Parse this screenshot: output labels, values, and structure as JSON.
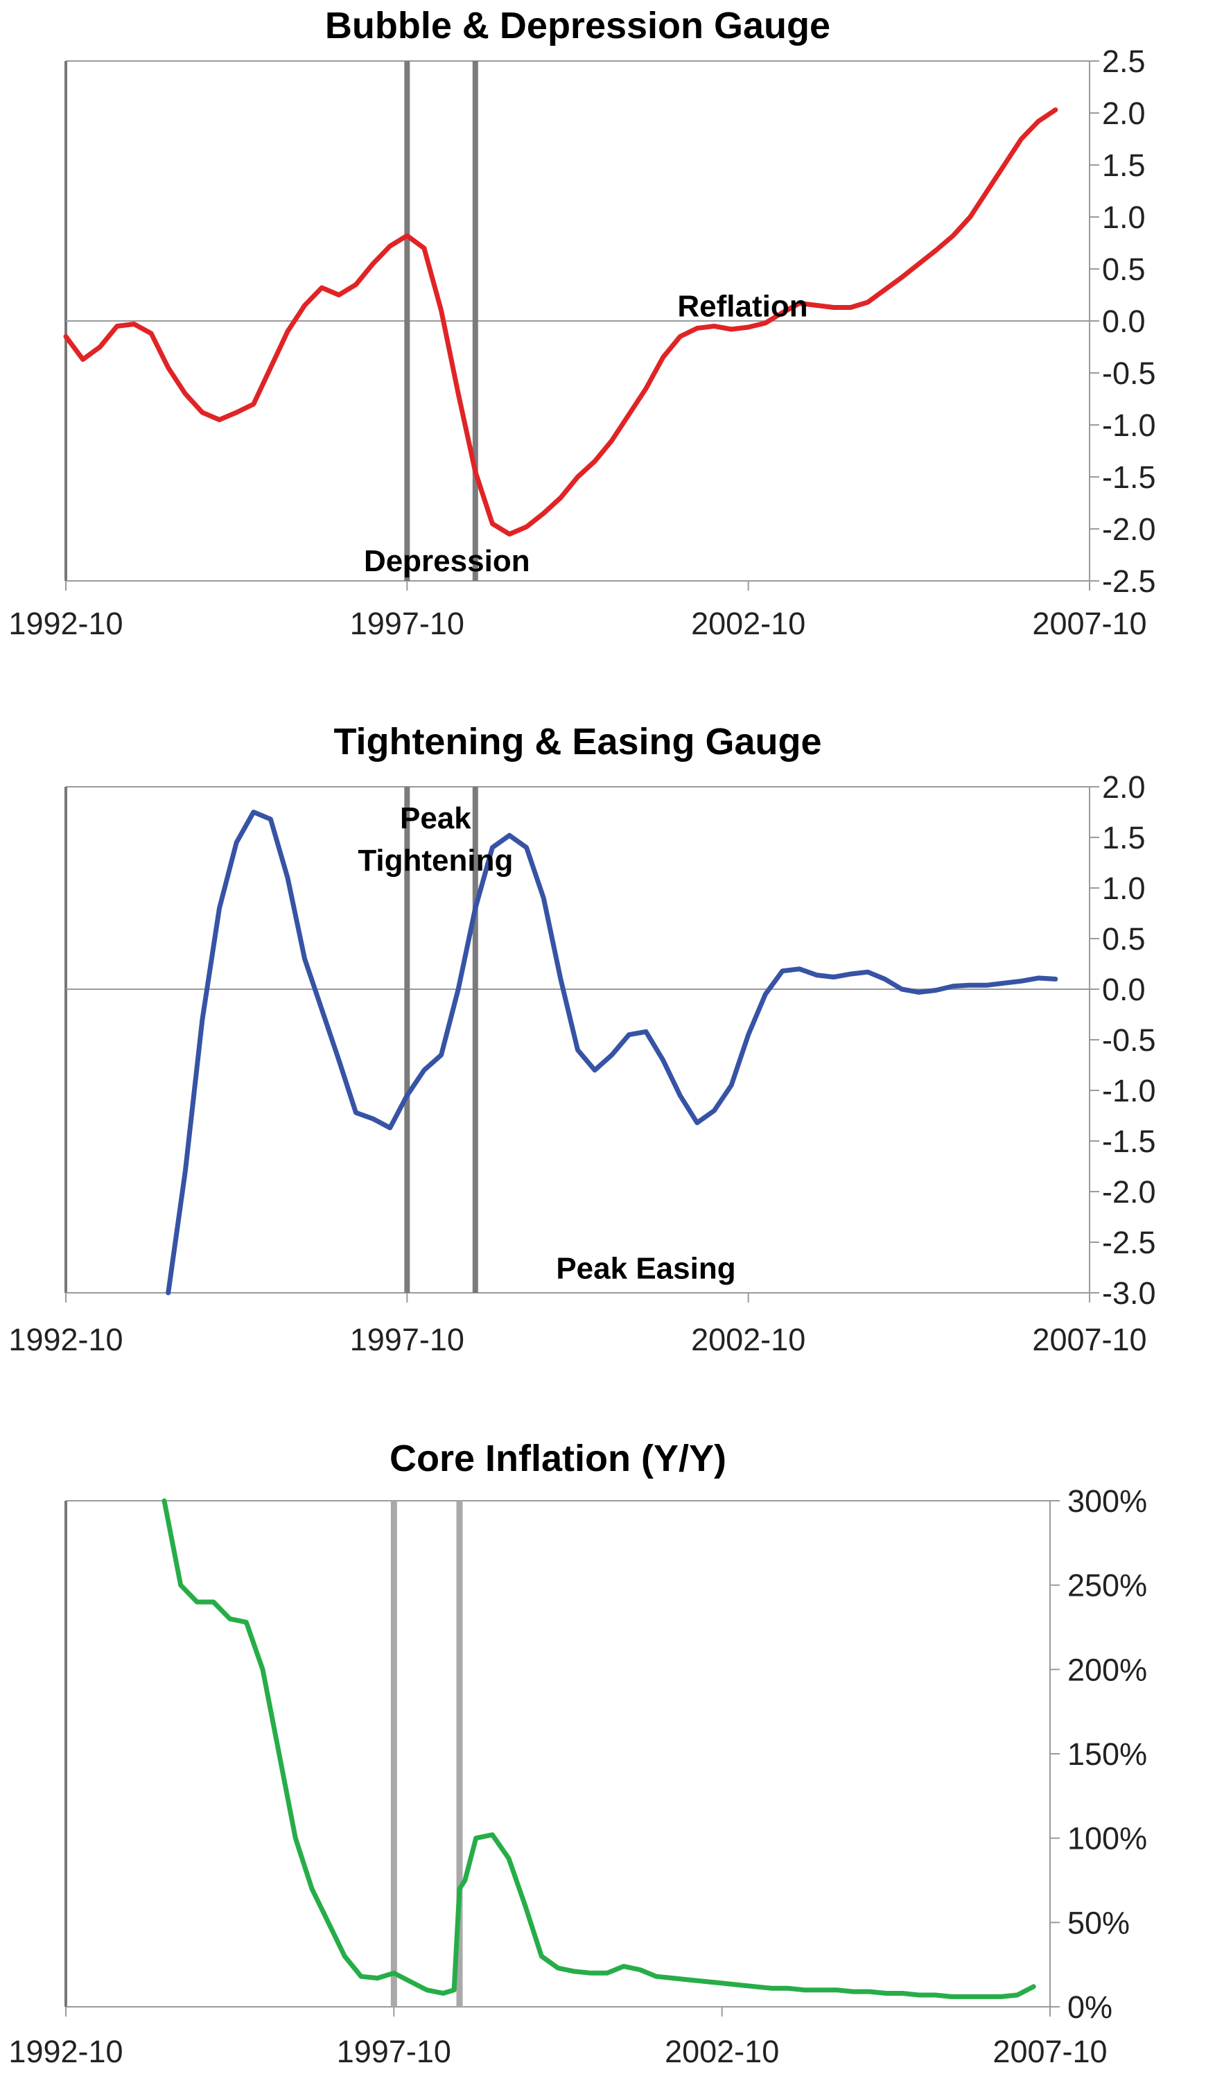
{
  "colors": {
    "bubble_line": "#e02426",
    "easing_line": "#3653a5",
    "inflation_line": "#27ad48",
    "marker_dark": "#7b7b7b",
    "marker_light": "#a9a9a9",
    "axis": "#9a9a9a"
  },
  "chart_data": [
    {
      "type": "line",
      "title": "Bubble & Depression Gauge",
      "xlabel": "",
      "ylabel": "",
      "x_ticks": [
        "1992-10",
        "1997-10",
        "2002-10",
        "2007-10"
      ],
      "y_ticks": [
        "2.5",
        "2.0",
        "1.5",
        "1.0",
        "0.5",
        "0.0",
        "-0.5",
        "-1.0",
        "-1.5",
        "-2.0",
        "-2.5"
      ],
      "ylim": [
        -2.5,
        2.5
      ],
      "y_axis_side": "right",
      "grid": false,
      "markers": [
        "1997-10",
        "1998-10"
      ],
      "annotations": [
        {
          "text": "Reflation",
          "x": "2002-09",
          "y": 0.15
        },
        {
          "text": "Depression",
          "x": "1998-05",
          "y": -2.3
        }
      ],
      "series": [
        {
          "values": [
            {
              "x": "1992-10",
              "y": -0.15
            },
            {
              "x": "1993-01",
              "y": -0.37
            },
            {
              "x": "1993-04",
              "y": -0.25
            },
            {
              "x": "1993-07",
              "y": -0.05
            },
            {
              "x": "1993-10",
              "y": -0.03
            },
            {
              "x": "1994-01",
              "y": -0.12
            },
            {
              "x": "1994-04",
              "y": -0.45
            },
            {
              "x": "1994-07",
              "y": -0.7
            },
            {
              "x": "1994-10",
              "y": -0.88
            },
            {
              "x": "1995-01",
              "y": -0.95
            },
            {
              "x": "1995-04",
              "y": -0.88
            },
            {
              "x": "1995-07",
              "y": -0.8
            },
            {
              "x": "1995-10",
              "y": -0.45
            },
            {
              "x": "1996-01",
              "y": -0.1
            },
            {
              "x": "1996-04",
              "y": 0.15
            },
            {
              "x": "1996-07",
              "y": 0.32
            },
            {
              "x": "1996-10",
              "y": 0.25
            },
            {
              "x": "1997-01",
              "y": 0.35
            },
            {
              "x": "1997-04",
              "y": 0.55
            },
            {
              "x": "1997-07",
              "y": 0.72
            },
            {
              "x": "1997-10",
              "y": 0.82
            },
            {
              "x": "1998-01",
              "y": 0.7
            },
            {
              "x": "1998-04",
              "y": 0.1
            },
            {
              "x": "1998-07",
              "y": -0.7
            },
            {
              "x": "1998-10",
              "y": -1.45
            },
            {
              "x": "1999-01",
              "y": -1.95
            },
            {
              "x": "1999-04",
              "y": -2.05
            },
            {
              "x": "1999-07",
              "y": -1.98
            },
            {
              "x": "1999-10",
              "y": -1.85
            },
            {
              "x": "2000-01",
              "y": -1.7
            },
            {
              "x": "2000-04",
              "y": -1.5
            },
            {
              "x": "2000-07",
              "y": -1.35
            },
            {
              "x": "2000-10",
              "y": -1.15
            },
            {
              "x": "2001-01",
              "y": -0.9
            },
            {
              "x": "2001-04",
              "y": -0.65
            },
            {
              "x": "2001-07",
              "y": -0.35
            },
            {
              "x": "2001-10",
              "y": -0.15
            },
            {
              "x": "2002-01",
              "y": -0.07
            },
            {
              "x": "2002-04",
              "y": -0.05
            },
            {
              "x": "2002-07",
              "y": -0.08
            },
            {
              "x": "2002-10",
              "y": -0.06
            },
            {
              "x": "2003-01",
              "y": -0.02
            },
            {
              "x": "2003-04",
              "y": 0.08
            },
            {
              "x": "2003-07",
              "y": 0.17
            },
            {
              "x": "2003-10",
              "y": 0.15
            },
            {
              "x": "2004-01",
              "y": 0.13
            },
            {
              "x": "2004-04",
              "y": 0.13
            },
            {
              "x": "2004-07",
              "y": 0.18
            },
            {
              "x": "2004-10",
              "y": 0.3
            },
            {
              "x": "2005-01",
              "y": 0.42
            },
            {
              "x": "2005-04",
              "y": 0.55
            },
            {
              "x": "2005-07",
              "y": 0.68
            },
            {
              "x": "2005-10",
              "y": 0.82
            },
            {
              "x": "2006-01",
              "y": 1.0
            },
            {
              "x": "2006-04",
              "y": 1.25
            },
            {
              "x": "2006-07",
              "y": 1.5
            },
            {
              "x": "2006-10",
              "y": 1.75
            },
            {
              "x": "2007-01",
              "y": 1.92
            },
            {
              "x": "2007-04",
              "y": 2.03
            }
          ]
        }
      ]
    },
    {
      "type": "line",
      "title": "Tightening & Easing Gauge",
      "xlabel": "",
      "ylabel": "",
      "x_ticks": [
        "1992-10",
        "1997-10",
        "2002-10",
        "2007-10"
      ],
      "y_ticks": [
        "2.0",
        "1.5",
        "1.0",
        "0.5",
        "0.0",
        "-0.5",
        "-1.0",
        "-1.5",
        "-2.0",
        "-2.5",
        "-3.0"
      ],
      "ylim": [
        -3.0,
        2.0
      ],
      "y_axis_side": "right",
      "grid": false,
      "markers": [
        "1997-10",
        "1998-10"
      ],
      "annotations": [
        {
          "text": "Peak",
          "x": "1998-03",
          "y": 1.7
        },
        {
          "text": "Tightening",
          "x": "1998-03",
          "y": 1.28
        },
        {
          "text": "Peak Easing",
          "x": "2001-04",
          "y": -2.75
        }
      ],
      "series": [
        {
          "values": [
            {
              "x": "1994-04",
              "y": -3.0
            },
            {
              "x": "1994-07",
              "y": -1.8
            },
            {
              "x": "1994-10",
              "y": -0.3
            },
            {
              "x": "1995-01",
              "y": 0.8
            },
            {
              "x": "1995-04",
              "y": 1.45
            },
            {
              "x": "1995-07",
              "y": 1.75
            },
            {
              "x": "1995-10",
              "y": 1.68
            },
            {
              "x": "1996-01",
              "y": 1.1
            },
            {
              "x": "1996-04",
              "y": 0.3
            },
            {
              "x": "1996-07",
              "y": -0.2
            },
            {
              "x": "1996-10",
              "y": -0.7
            },
            {
              "x": "1997-01",
              "y": -1.22
            },
            {
              "x": "1997-04",
              "y": -1.28
            },
            {
              "x": "1997-07",
              "y": -1.37
            },
            {
              "x": "1997-10",
              "y": -1.05
            },
            {
              "x": "1998-01",
              "y": -0.8
            },
            {
              "x": "1998-04",
              "y": -0.65
            },
            {
              "x": "1998-07",
              "y": 0.0
            },
            {
              "x": "1998-10",
              "y": 0.8
            },
            {
              "x": "1999-01",
              "y": 1.4
            },
            {
              "x": "1999-04",
              "y": 1.52
            },
            {
              "x": "1999-07",
              "y": 1.4
            },
            {
              "x": "1999-10",
              "y": 0.9
            },
            {
              "x": "2000-01",
              "y": 0.1
            },
            {
              "x": "2000-04",
              "y": -0.6
            },
            {
              "x": "2000-07",
              "y": -0.8
            },
            {
              "x": "2000-10",
              "y": -0.65
            },
            {
              "x": "2001-01",
              "y": -0.45
            },
            {
              "x": "2001-04",
              "y": -0.42
            },
            {
              "x": "2001-07",
              "y": -0.7
            },
            {
              "x": "2001-10",
              "y": -1.05
            },
            {
              "x": "2002-01",
              "y": -1.32
            },
            {
              "x": "2002-04",
              "y": -1.2
            },
            {
              "x": "2002-07",
              "y": -0.95
            },
            {
              "x": "2002-10",
              "y": -0.45
            },
            {
              "x": "2003-01",
              "y": -0.05
            },
            {
              "x": "2003-04",
              "y": 0.18
            },
            {
              "x": "2003-07",
              "y": 0.2
            },
            {
              "x": "2003-10",
              "y": 0.14
            },
            {
              "x": "2004-01",
              "y": 0.12
            },
            {
              "x": "2004-04",
              "y": 0.15
            },
            {
              "x": "2004-07",
              "y": 0.17
            },
            {
              "x": "2004-10",
              "y": 0.1
            },
            {
              "x": "2005-01",
              "y": 0.0
            },
            {
              "x": "2005-04",
              "y": -0.03
            },
            {
              "x": "2005-07",
              "y": -0.01
            },
            {
              "x": "2005-10",
              "y": 0.03
            },
            {
              "x": "2006-01",
              "y": 0.04
            },
            {
              "x": "2006-04",
              "y": 0.04
            },
            {
              "x": "2006-07",
              "y": 0.06
            },
            {
              "x": "2006-10",
              "y": 0.08
            },
            {
              "x": "2007-01",
              "y": 0.11
            },
            {
              "x": "2007-04",
              "y": 0.1
            }
          ]
        }
      ]
    },
    {
      "type": "line",
      "title": "Core Inflation (Y/Y)",
      "xlabel": "",
      "ylabel": "",
      "x_ticks": [
        "1992-10",
        "1997-10",
        "2002-10",
        "2007-10"
      ],
      "y_ticks": [
        "300%",
        "250%",
        "200%",
        "150%",
        "100%",
        "50%",
        "0%"
      ],
      "ylim": [
        0,
        300
      ],
      "y_unit": "%",
      "y_axis_side": "right",
      "grid": false,
      "markers": [
        "1997-10",
        "1998-10"
      ],
      "series": [
        {
          "values": [
            {
              "x": "1994-04",
              "y": 300
            },
            {
              "x": "1994-07",
              "y": 250
            },
            {
              "x": "1994-10",
              "y": 240
            },
            {
              "x": "1995-01",
              "y": 240
            },
            {
              "x": "1995-04",
              "y": 230
            },
            {
              "x": "1995-07",
              "y": 228
            },
            {
              "x": "1995-10",
              "y": 200
            },
            {
              "x": "1996-01",
              "y": 150
            },
            {
              "x": "1996-04",
              "y": 100
            },
            {
              "x": "1996-07",
              "y": 70
            },
            {
              "x": "1996-10",
              "y": 50
            },
            {
              "x": "1997-01",
              "y": 30
            },
            {
              "x": "1997-04",
              "y": 18
            },
            {
              "x": "1997-07",
              "y": 17
            },
            {
              "x": "1997-10",
              "y": 20
            },
            {
              "x": "1998-01",
              "y": 15
            },
            {
              "x": "1998-04",
              "y": 10
            },
            {
              "x": "1998-07",
              "y": 8
            },
            {
              "x": "1998-08",
              "y": 9
            },
            {
              "x": "1998-09",
              "y": 10
            },
            {
              "x": "1998-10",
              "y": 70
            },
            {
              "x": "1998-11",
              "y": 75
            },
            {
              "x": "1999-01",
              "y": 100
            },
            {
              "x": "1999-04",
              "y": 102
            },
            {
              "x": "1999-07",
              "y": 88
            },
            {
              "x": "1999-10",
              "y": 60
            },
            {
              "x": "2000-01",
              "y": 30
            },
            {
              "x": "2000-04",
              "y": 23
            },
            {
              "x": "2000-07",
              "y": 21
            },
            {
              "x": "2000-10",
              "y": 20
            },
            {
              "x": "2001-01",
              "y": 20
            },
            {
              "x": "2001-04",
              "y": 24
            },
            {
              "x": "2001-07",
              "y": 22
            },
            {
              "x": "2001-10",
              "y": 18
            },
            {
              "x": "2002-01",
              "y": 17
            },
            {
              "x": "2002-04",
              "y": 16
            },
            {
              "x": "2002-07",
              "y": 15
            },
            {
              "x": "2002-10",
              "y": 14
            },
            {
              "x": "2003-01",
              "y": 13
            },
            {
              "x": "2003-04",
              "y": 12
            },
            {
              "x": "2003-07",
              "y": 11
            },
            {
              "x": "2003-10",
              "y": 11
            },
            {
              "x": "2004-01",
              "y": 10
            },
            {
              "x": "2004-04",
              "y": 10
            },
            {
              "x": "2004-07",
              "y": 10
            },
            {
              "x": "2004-10",
              "y": 9
            },
            {
              "x": "2005-01",
              "y": 9
            },
            {
              "x": "2005-04",
              "y": 8
            },
            {
              "x": "2005-07",
              "y": 8
            },
            {
              "x": "2005-10",
              "y": 7
            },
            {
              "x": "2006-01",
              "y": 7
            },
            {
              "x": "2006-04",
              "y": 6
            },
            {
              "x": "2006-07",
              "y": 6
            },
            {
              "x": "2006-10",
              "y": 6
            },
            {
              "x": "2007-01",
              "y": 6
            },
            {
              "x": "2007-04",
              "y": 7
            },
            {
              "x": "2007-07",
              "y": 12
            }
          ]
        }
      ]
    }
  ]
}
